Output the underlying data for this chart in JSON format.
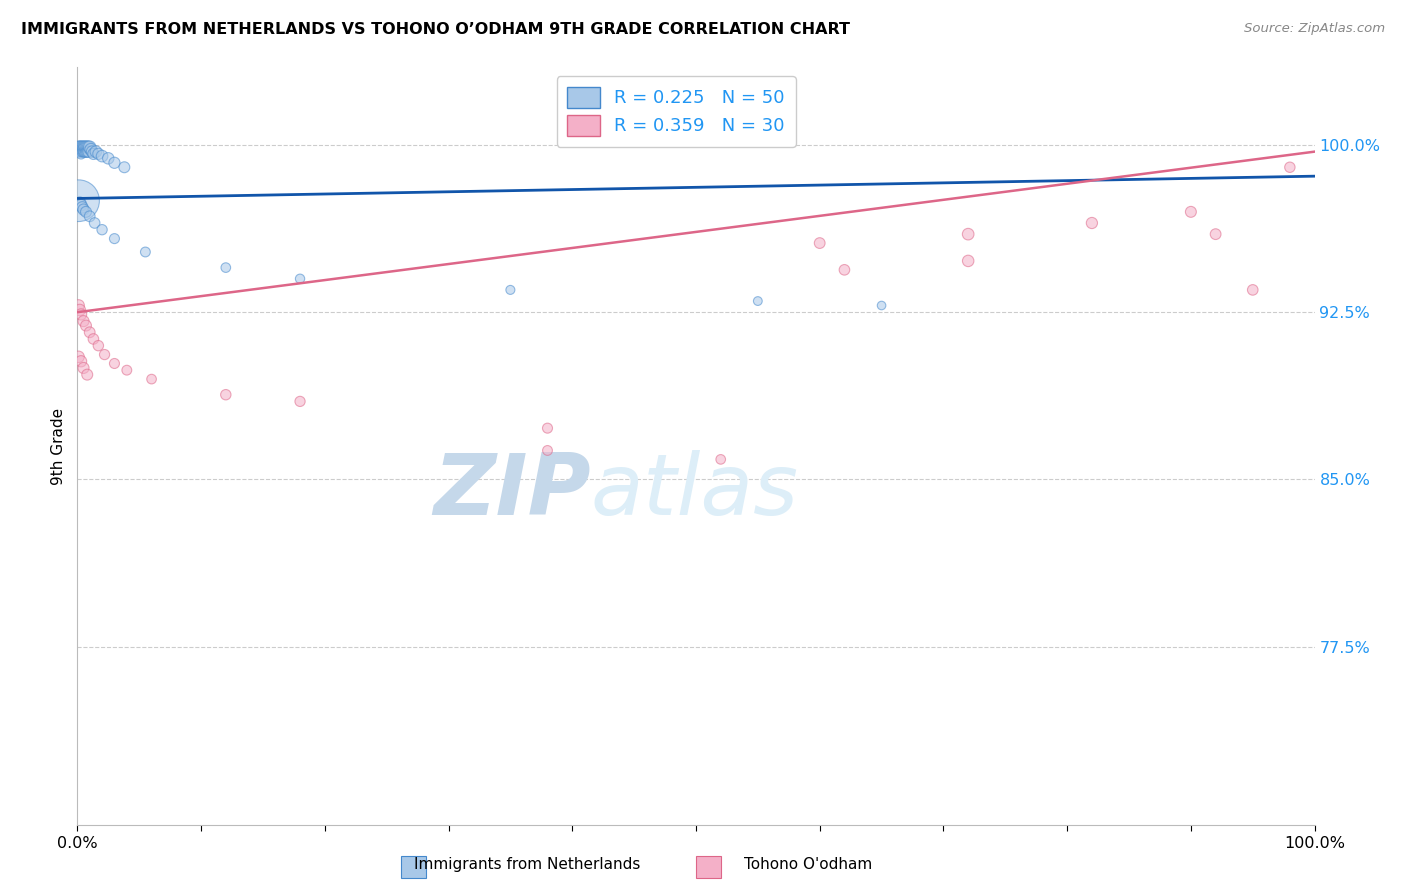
{
  "title": "IMMIGRANTS FROM NETHERLANDS VS TOHONO O’ODHAM 9TH GRADE CORRELATION CHART",
  "source": "Source: ZipAtlas.com",
  "ylabel": "9th Grade",
  "ytick_labels": [
    "77.5%",
    "85.0%",
    "92.5%",
    "100.0%"
  ],
  "ytick_values": [
    0.775,
    0.85,
    0.925,
    1.0
  ],
  "xlim": [
    0.0,
    1.0
  ],
  "ylim": [
    0.695,
    1.035
  ],
  "blue_fill": "#a8c8e8",
  "blue_edge": "#4488cc",
  "blue_line": "#1155aa",
  "pink_fill": "#f4b0c8",
  "pink_edge": "#dd6688",
  "pink_line": "#dd6688",
  "legend_text_color": "#2196F3",
  "ytick_color": "#2196F3",
  "watermark_text": "ZIPatlas",
  "watermark_color": "#ddeef8",
  "grid_color": "#cccccc",
  "bg_color": "#ffffff",
  "blue_x": [
    0.001,
    0.001,
    0.001,
    0.002,
    0.002,
    0.002,
    0.003,
    0.003,
    0.003,
    0.003,
    0.004,
    0.004,
    0.004,
    0.005,
    0.005,
    0.005,
    0.006,
    0.006,
    0.007,
    0.007,
    0.008,
    0.008,
    0.009,
    0.009,
    0.01,
    0.011,
    0.012,
    0.013,
    0.015,
    0.017,
    0.02,
    0.025,
    0.03,
    0.038,
    0.001,
    0.002,
    0.003,
    0.004,
    0.005,
    0.007,
    0.01,
    0.014,
    0.02,
    0.03,
    0.055,
    0.12,
    0.18,
    0.35,
    0.55,
    0.65
  ],
  "blue_y": [
    0.999,
    0.998,
    0.997,
    0.999,
    0.998,
    0.997,
    0.999,
    0.998,
    0.997,
    0.996,
    0.999,
    0.998,
    0.997,
    0.999,
    0.998,
    0.997,
    0.999,
    0.997,
    0.999,
    0.997,
    0.999,
    0.997,
    0.999,
    0.997,
    0.999,
    0.998,
    0.997,
    0.996,
    0.997,
    0.996,
    0.995,
    0.994,
    0.992,
    0.99,
    0.975,
    0.974,
    0.973,
    0.972,
    0.971,
    0.97,
    0.968,
    0.965,
    0.962,
    0.958,
    0.952,
    0.945,
    0.94,
    0.935,
    0.93,
    0.928
  ],
  "blue_sizes": [
    80,
    70,
    60,
    80,
    70,
    60,
    80,
    70,
    60,
    55,
    80,
    70,
    60,
    80,
    70,
    60,
    80,
    65,
    80,
    65,
    80,
    65,
    80,
    65,
    80,
    75,
    70,
    65,
    70,
    65,
    70,
    68,
    65,
    62,
    900,
    75,
    70,
    68,
    65,
    62,
    60,
    58,
    55,
    52,
    50,
    48,
    45,
    42,
    40,
    38
  ],
  "pink_x": [
    0.001,
    0.002,
    0.003,
    0.005,
    0.007,
    0.01,
    0.013,
    0.017,
    0.022,
    0.03,
    0.04,
    0.06,
    0.001,
    0.003,
    0.005,
    0.008,
    0.12,
    0.18,
    0.38,
    0.38,
    0.52,
    0.6,
    0.62,
    0.72,
    0.72,
    0.82,
    0.9,
    0.92,
    0.95,
    0.98
  ],
  "pink_y": [
    0.928,
    0.926,
    0.924,
    0.921,
    0.919,
    0.916,
    0.913,
    0.91,
    0.906,
    0.902,
    0.899,
    0.895,
    0.905,
    0.903,
    0.9,
    0.897,
    0.888,
    0.885,
    0.873,
    0.863,
    0.859,
    0.956,
    0.944,
    0.96,
    0.948,
    0.965,
    0.97,
    0.96,
    0.935,
    0.99
  ],
  "pink_sizes": [
    70,
    68,
    66,
    64,
    62,
    60,
    58,
    56,
    54,
    52,
    50,
    48,
    68,
    66,
    64,
    62,
    56,
    54,
    52,
    50,
    48,
    60,
    58,
    70,
    68,
    65,
    62,
    60,
    58,
    56
  ]
}
